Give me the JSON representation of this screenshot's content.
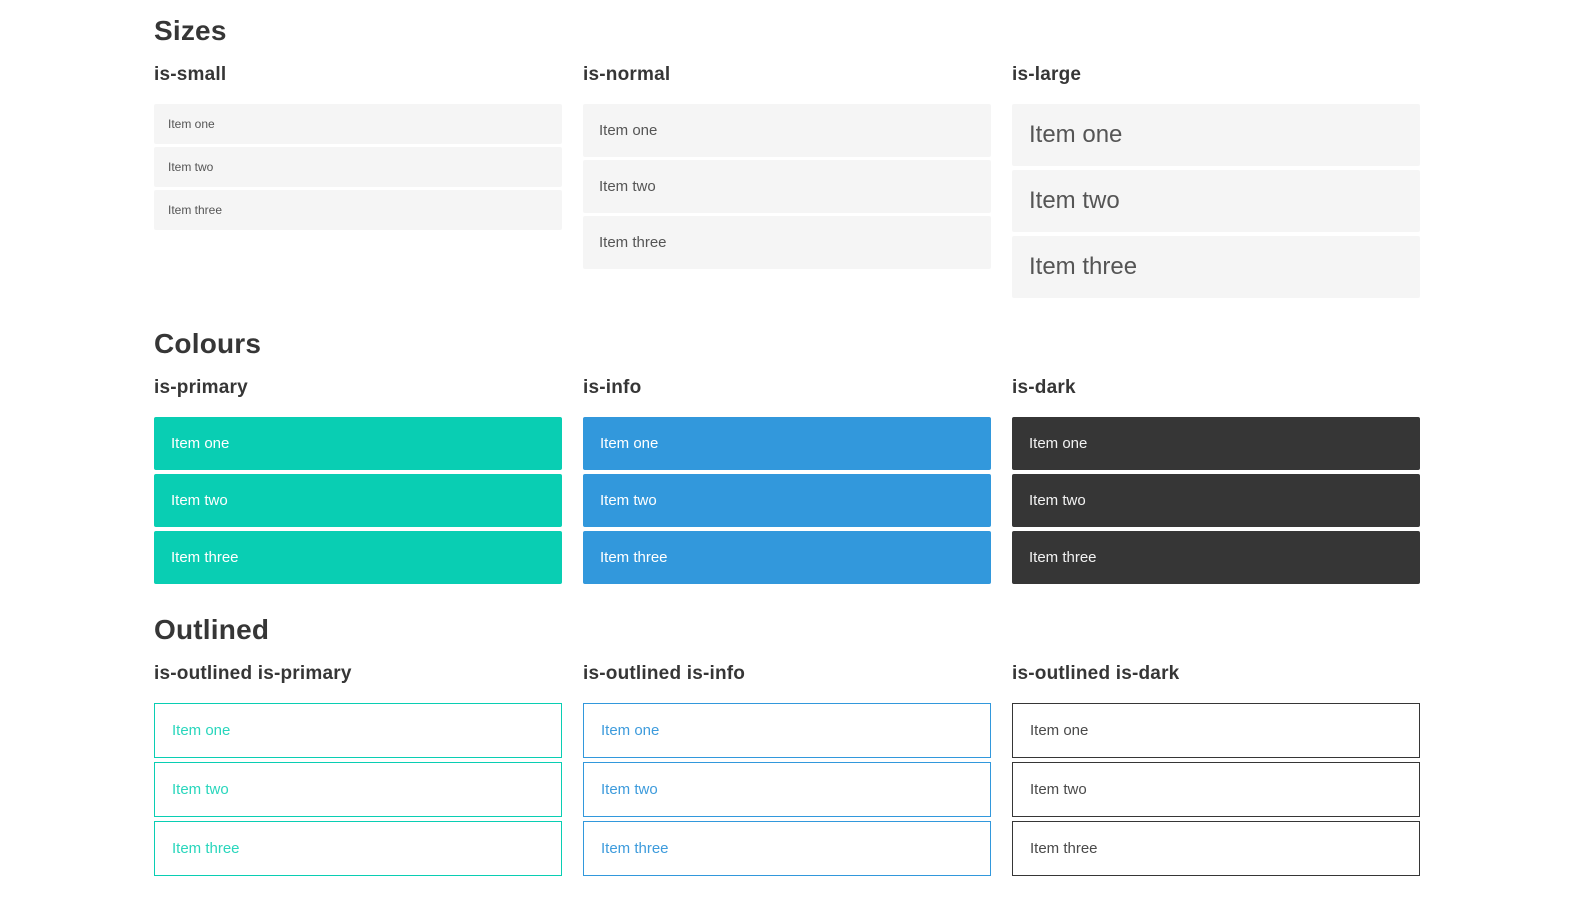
{
  "colors": {
    "primary": "#09ceb3",
    "info": "#3298dc",
    "dark": "#363636",
    "item_bg": "#f5f5f5",
    "item_text": "#555555",
    "heading": "#363636"
  },
  "sections": [
    {
      "title": "Sizes",
      "groups": [
        {
          "label": "is-small",
          "items": [
            "Item one",
            "Item two",
            "Item three"
          ]
        },
        {
          "label": "is-normal",
          "items": [
            "Item one",
            "Item two",
            "Item three"
          ]
        },
        {
          "label": "is-large",
          "items": [
            "Item one",
            "Item two",
            "Item three"
          ]
        }
      ]
    },
    {
      "title": "Colours",
      "groups": [
        {
          "label": "is-primary",
          "items": [
            "Item one",
            "Item two",
            "Item three"
          ]
        },
        {
          "label": "is-info",
          "items": [
            "Item one",
            "Item two",
            "Item three"
          ]
        },
        {
          "label": "is-dark",
          "items": [
            "Item one",
            "Item two",
            "Item three"
          ]
        }
      ]
    },
    {
      "title": "Outlined",
      "groups": [
        {
          "label": "is-outlined is-primary",
          "items": [
            "Item one",
            "Item two",
            "Item three"
          ]
        },
        {
          "label": "is-outlined is-info",
          "items": [
            "Item one",
            "Item two",
            "Item three"
          ]
        },
        {
          "label": "is-outlined is-dark",
          "items": [
            "Item one",
            "Item two",
            "Item three"
          ]
        }
      ]
    }
  ]
}
